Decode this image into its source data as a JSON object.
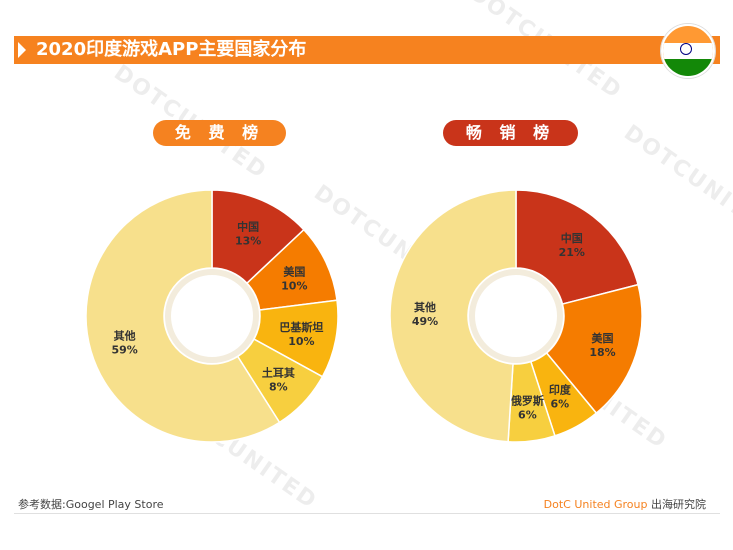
{
  "header": {
    "title": "2020印度游戏APP主要国家分布"
  },
  "flag": {
    "icon": "india-flag-icon"
  },
  "watermark": {
    "text": "DOTCUNITED"
  },
  "footer": {
    "source": "参考数据:Googel Play Store",
    "brand": "DotC United Group",
    "institute": "出海研究院"
  },
  "colors": {
    "title_bar": "#f6821f",
    "free_pill": "#f58220",
    "grossing_pill": "#c9341a",
    "slice_1": "#c9341a",
    "slice_2": "#f57c00",
    "slice_3": "#f9b40f",
    "slice_4": "#f7cf3f",
    "slice_other": "#f7e08c"
  },
  "chart_data": [
    {
      "type": "pie",
      "title": "免 费 榜",
      "categories": [
        "中国",
        "美国",
        "巴基斯坦",
        "土耳其",
        "其他"
      ],
      "values": [
        13,
        10,
        10,
        8,
        59
      ],
      "labels": [
        "13%",
        "10%",
        "10%",
        "8%",
        "59%"
      ],
      "donut": true
    },
    {
      "type": "pie",
      "title": "畅 销 榜",
      "categories": [
        "中国",
        "美国",
        "印度",
        "俄罗斯",
        "其他"
      ],
      "values": [
        21,
        18,
        6,
        6,
        49
      ],
      "labels": [
        "21%",
        "18%",
        "6%",
        "6%",
        "49%"
      ],
      "donut": true
    }
  ]
}
